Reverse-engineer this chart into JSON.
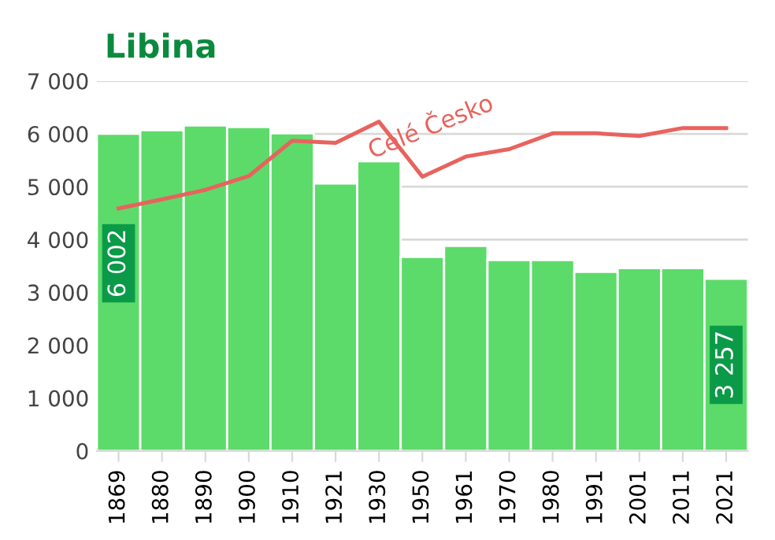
{
  "chart_data": {
    "type": "bar",
    "title": "Libina",
    "categories": [
      "1869",
      "1880",
      "1890",
      "1900",
      "1910",
      "1921",
      "1930",
      "1950",
      "1961",
      "1970",
      "1980",
      "1991",
      "2001",
      "2011",
      "2021"
    ],
    "series": [
      {
        "color": "#5cdb6a",
        "values": [
          6002,
          6070,
          6160,
          6130,
          6010,
          5060,
          5480,
          3670,
          3880,
          3610,
          3610,
          3390,
          3460,
          3460,
          3257
        ],
        "value_labels": [
          "6 002",
          null,
          null,
          null,
          null,
          null,
          null,
          null,
          null,
          null,
          null,
          null,
          null,
          null,
          "3 257"
        ]
      },
      {
        "type": "line",
        "name": "Celé Česko",
        "color": "#e8635e",
        "values": [
          4590,
          4760,
          4940,
          5200,
          5870,
          5830,
          6230,
          5190,
          5570,
          5710,
          6010,
          6010,
          5960,
          6110,
          6110
        ]
      }
    ],
    "ylim": [
      0,
      7000
    ],
    "yticks": [
      {
        "value": 0,
        "label": "0"
      },
      {
        "value": 1000,
        "label": "1 000"
      },
      {
        "value": 2000,
        "label": "2 000"
      },
      {
        "value": 3000,
        "label": "3 000"
      },
      {
        "value": 4000,
        "label": "4 000"
      },
      {
        "value": 5000,
        "label": "5 000"
      },
      {
        "value": 6000,
        "label": "6 000"
      },
      {
        "value": 7000,
        "label": "7 000"
      }
    ],
    "grid": "y",
    "legend": false
  }
}
